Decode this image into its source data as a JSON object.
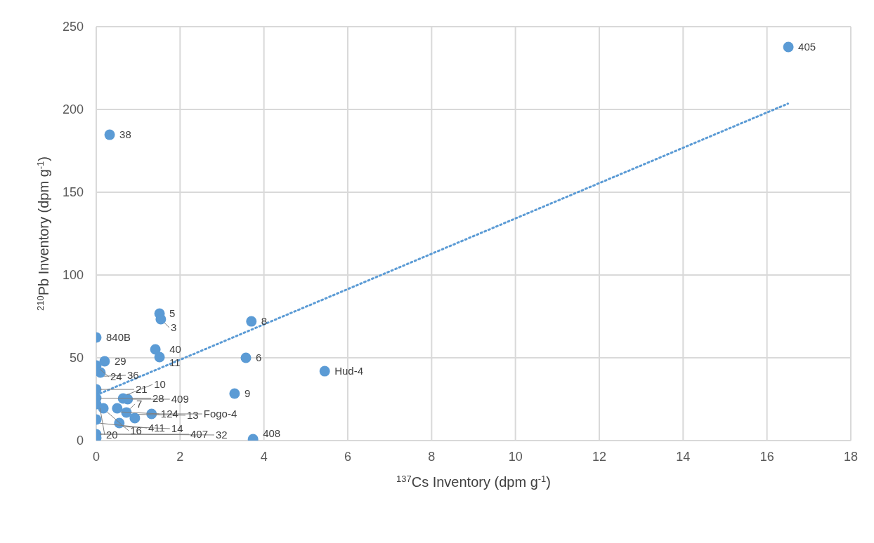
{
  "chart_data": {
    "type": "scatter",
    "xlabel": "$^{137}$Cs Inventory (dpm g$^{-1}$)",
    "ylabel": "$^{210}$Pb Inventory (dpm g$^{-1}$)",
    "xlim": [
      0,
      18
    ],
    "xticks": [
      0,
      2,
      4,
      6,
      8,
      10,
      12,
      14,
      16,
      18
    ],
    "ylim": [
      0,
      250
    ],
    "yticks": [
      0,
      50,
      100,
      150,
      200,
      250
    ],
    "grid": true,
    "legend": false,
    "marker": "circle",
    "series": [
      {
        "type": "scatter",
        "color": "#5b9bd5",
        "x": [
          16.51,
          0.32,
          1.51,
          1.54,
          3.7,
          0,
          1.41,
          1.51,
          3.57,
          5.45,
          0.2,
          0,
          0.1,
          0,
          3.3,
          0,
          0,
          0.17,
          0.5,
          0.72,
          0.64,
          0.75,
          0,
          0.55,
          0.92,
          1.32,
          0,
          0,
          3.74
        ],
        "values": [
          237.7,
          184.7,
          76.7,
          73.3,
          72,
          62.3,
          55.1,
          50.4,
          50,
          41.9,
          47.9,
          45.3,
          41.1,
          30.9,
          28.4,
          25.6,
          22,
          19.5,
          19.5,
          17,
          25.4,
          25,
          12.7,
          10.6,
          13.6,
          16.1,
          3.8,
          1.7,
          0.8
        ]
      },
      {
        "type": "line",
        "color": "#5b9bd5",
        "line_style": "dotted",
        "marker": "none",
        "x": [
          0,
          16.5
        ],
        "values": [
          27.5,
          203.5
        ]
      }
    ],
    "annotations": [
      {
        "text": "405",
        "x": 16.51,
        "y": 237.7
      },
      {
        "text": "38",
        "x": 0.32,
        "y": 184.7
      },
      {
        "text": "5",
        "x": 1.51,
        "y": 76.7
      },
      {
        "text": "3",
        "x": 1.54,
        "y": 73.3
      },
      {
        "text": "8",
        "x": 3.7,
        "y": 72
      },
      {
        "text": "840B",
        "x": 0,
        "y": 62.3
      },
      {
        "text": "40",
        "x": 1.41,
        "y": 55.1
      },
      {
        "text": "11",
        "x": 1.51,
        "y": 50.4
      },
      {
        "text": "6",
        "x": 3.57,
        "y": 50
      },
      {
        "text": "Hud-4",
        "x": 5.45,
        "y": 41.9
      },
      {
        "text": "29",
        "x": 0.2,
        "y": 47.9
      },
      {
        "text": "24",
        "x": 0,
        "y": 45.3
      },
      {
        "text": "36",
        "x": 0.1,
        "y": 41.1
      },
      {
        "text": "21",
        "x": 0,
        "y": 30.9
      },
      {
        "text": "9",
        "x": 3.3,
        "y": 28.4
      },
      {
        "text": "28",
        "x": 0,
        "y": 25.6
      },
      {
        "text": "20",
        "x": 0,
        "y": 22
      },
      {
        "text": "16",
        "x": 0.17,
        "y": 19.5
      },
      {
        "text": "124",
        "x": 0.5,
        "y": 19.5
      },
      {
        "text": "7",
        "x": 0.72,
        "y": 17
      },
      {
        "text": "10",
        "x": 0.64,
        "y": 25.4
      },
      {
        "text": "409",
        "x": 0.75,
        "y": 25
      },
      {
        "text": "411",
        "x": 0,
        "y": 12.7
      },
      {
        "text": "14",
        "x": 0.55,
        "y": 10.6
      },
      {
        "text": "13",
        "x": 0.92,
        "y": 13.6
      },
      {
        "text": "Fogo-4",
        "x": 1.32,
        "y": 16.1
      },
      {
        "text": "407",
        "x": 0,
        "y": 3.8
      },
      {
        "text": "32",
        "x": 0,
        "y": 1.7
      },
      {
        "text": "408",
        "x": 3.74,
        "y": 0.8
      }
    ]
  }
}
